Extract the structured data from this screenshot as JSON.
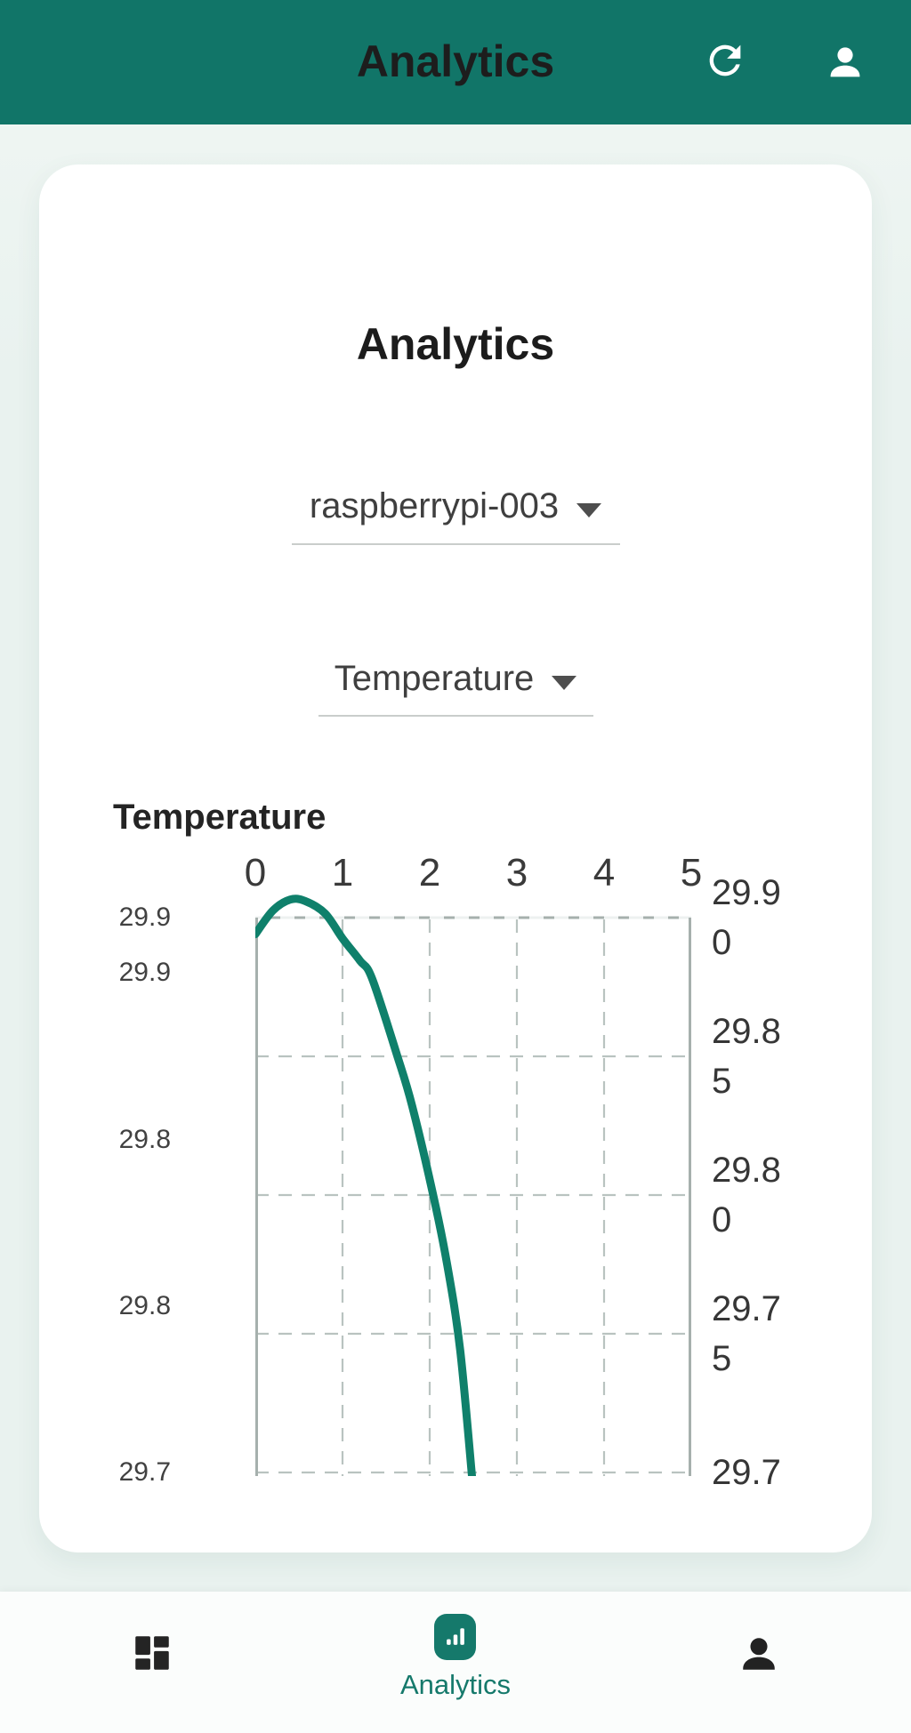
{
  "app_bar": {
    "title": "Analytics",
    "actions": [
      {
        "icon": "refresh-icon"
      },
      {
        "icon": "person-icon"
      }
    ]
  },
  "card": {
    "heading": "Analytics",
    "device_select": {
      "value": "raspberrypi-003"
    },
    "metric_select": {
      "value": "Temperature"
    }
  },
  "chart_data": {
    "type": "line",
    "title": "Temperature",
    "grid": "dashed",
    "legend": "none",
    "x_axis": {
      "position": "top",
      "min": 0,
      "max": 5,
      "ticks": [
        0,
        1,
        2,
        3,
        4,
        5
      ]
    },
    "y_axis_right": {
      "ticks": [
        {
          "value": 29.9,
          "label": "29.9\n0"
        },
        {
          "value": 29.85,
          "label": "29.8\n5"
        },
        {
          "value": 29.8,
          "label": "29.8\n0"
        },
        {
          "value": 29.75,
          "label": "29.7\n5"
        },
        {
          "value": 29.7,
          "label": "29.7"
        }
      ]
    },
    "y_axis_left": {
      "ticks": [
        {
          "value": 29.9,
          "label": "29.9"
        },
        {
          "value": 29.88,
          "label": "29.9"
        },
        {
          "value": 29.82,
          "label": "29.8"
        },
        {
          "value": 29.76,
          "label": "29.8"
        },
        {
          "value": 29.7,
          "label": "29.7"
        }
      ]
    },
    "series": [
      {
        "name": "Temperature",
        "color": "#0F806B",
        "points": [
          [
            0.0,
            29.894
          ],
          [
            0.2,
            29.9025
          ],
          [
            0.4,
            29.9065
          ],
          [
            0.57,
            29.906
          ],
          [
            0.8,
            29.9015
          ],
          [
            1.0,
            29.8925
          ],
          [
            1.2,
            29.8845
          ],
          [
            1.34,
            29.878
          ],
          [
            1.63,
            29.85
          ],
          [
            1.8,
            29.832
          ],
          [
            2.04,
            29.8
          ],
          [
            2.2,
            29.775
          ],
          [
            2.35,
            29.744
          ],
          [
            2.49,
            29.697
          ]
        ]
      }
    ]
  },
  "bottom_nav": {
    "items": [
      {
        "icon": "dashboard-icon",
        "label": "",
        "selected": false
      },
      {
        "icon": "analytics-icon",
        "label": "Analytics",
        "selected": true
      },
      {
        "icon": "person-icon",
        "label": "",
        "selected": false
      }
    ]
  },
  "colors": {
    "app_bar_bg": "#117568",
    "accent": "#15796B",
    "line_color": "#0F806B",
    "page_bg": "#E9F2EF",
    "nav_bg": "#FBFDFC",
    "grid_color": "#B9C3C0",
    "plot_border_color": "#A6B0AD",
    "title_text": "#1D1D1D",
    "body_text": "#3F3F3F"
  }
}
